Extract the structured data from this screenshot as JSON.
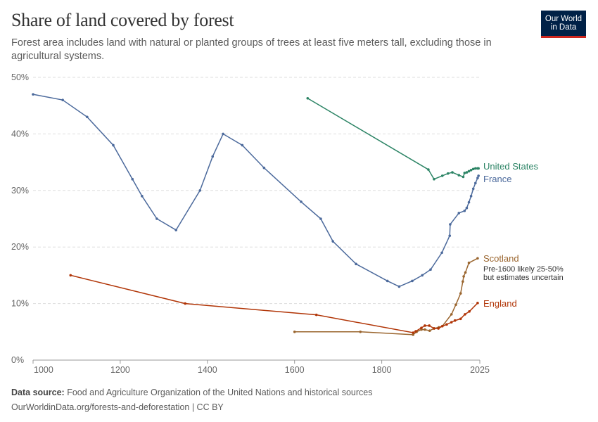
{
  "header": {
    "title": "Share of land covered by forest",
    "subtitle": "Forest area includes land with natural or planted groups of trees at least five meters tall, excluding those in agricultural systems.",
    "logo_text": "Our World in Data"
  },
  "footer": {
    "source_label": "Data source:",
    "source": "Food and Agriculture Organization of the United Nations and historical sources",
    "url": "OurWorldinData.org/forests-and-deforestation | CC BY"
  },
  "chart_data": {
    "type": "line",
    "title": "Share of land covered by forest",
    "xlabel": "",
    "ylabel": "",
    "xlim": [
      1000,
      2025
    ],
    "ylim": [
      0,
      50
    ],
    "x_ticks": [
      "1000",
      "1200",
      "1400",
      "1600",
      "1800",
      "2025"
    ],
    "y_ticks": [
      "0%",
      "10%",
      "20%",
      "30%",
      "40%",
      "50%"
    ],
    "grid": "horizontal dashed",
    "legend": "line-end labels",
    "annotations": [
      {
        "series": "Scotland",
        "text": "Pre-1600 likely 25-50% but estimates uncertain"
      }
    ],
    "series": [
      {
        "name": "United States",
        "color": "#2c8465",
        "points": [
          [
            1630,
            46.3
          ],
          [
            1907,
            33.7
          ],
          [
            1920,
            32
          ],
          [
            1939,
            32.6
          ],
          [
            1952,
            33
          ],
          [
            1962,
            33.2
          ],
          [
            1977,
            32.7
          ],
          [
            1987,
            32.4
          ],
          [
            1990,
            33.1
          ],
          [
            1995,
            33.2
          ],
          [
            2000,
            33.4
          ],
          [
            2005,
            33.6
          ],
          [
            2010,
            33.8
          ],
          [
            2015,
            33.9
          ],
          [
            2020,
            33.9
          ],
          [
            2022,
            33.9
          ]
        ]
      },
      {
        "name": "France",
        "color": "#4c6a9c",
        "points": [
          [
            1000,
            47
          ],
          [
            1068,
            46
          ],
          [
            1124,
            43
          ],
          [
            1184,
            38
          ],
          [
            1228,
            32
          ],
          [
            1250,
            29
          ],
          [
            1284,
            25
          ],
          [
            1328,
            23
          ],
          [
            1383,
            30
          ],
          [
            1412,
            36
          ],
          [
            1436,
            40
          ],
          [
            1480,
            38
          ],
          [
            1530,
            34
          ],
          [
            1615,
            28
          ],
          [
            1660,
            25
          ],
          [
            1688,
            21
          ],
          [
            1741,
            17
          ],
          [
            1813,
            14
          ],
          [
            1840,
            13
          ],
          [
            1870,
            14
          ],
          [
            1893,
            15
          ],
          [
            1912,
            16
          ],
          [
            1938,
            19
          ],
          [
            1956,
            22
          ],
          [
            1957,
            24
          ],
          [
            1977,
            26
          ],
          [
            1990,
            26.4
          ],
          [
            1995,
            26.9
          ],
          [
            2000,
            27.9
          ],
          [
            2005,
            29
          ],
          [
            2010,
            30.3
          ],
          [
            2015,
            31.3
          ],
          [
            2020,
            32.2
          ],
          [
            2022,
            32.6
          ]
        ]
      },
      {
        "name": "Scotland",
        "color": "#9a652e",
        "points": [
          [
            1600,
            5
          ],
          [
            1751,
            5
          ],
          [
            1872,
            4.5
          ],
          [
            1880,
            5
          ],
          [
            1891,
            5.4
          ],
          [
            1899,
            5.4
          ],
          [
            1910,
            5.2
          ],
          [
            1920,
            5.6
          ],
          [
            1931,
            5.8
          ],
          [
            1939,
            6
          ],
          [
            1960,
            8.1
          ],
          [
            1970,
            9.8
          ],
          [
            1981,
            11.8
          ],
          [
            1986,
            13.9
          ],
          [
            1988,
            14.8
          ],
          [
            1992,
            15.5
          ],
          [
            2000,
            17.2
          ],
          [
            2020,
            18
          ]
        ]
      },
      {
        "name": "England",
        "color": "#b13507",
        "points": [
          [
            1086,
            15
          ],
          [
            1349,
            10
          ],
          [
            1650,
            8
          ],
          [
            1872,
            4.85
          ],
          [
            1878,
            5.1
          ],
          [
            1891,
            5.7
          ],
          [
            1899,
            6.1
          ],
          [
            1909,
            6.1
          ],
          [
            1920,
            5.6
          ],
          [
            1930,
            5.6
          ],
          [
            1939,
            6
          ],
          [
            1949,
            6.3
          ],
          [
            1960,
            6.7
          ],
          [
            1968,
            7
          ],
          [
            1981,
            7.3
          ],
          [
            1991,
            8.1
          ],
          [
            2001,
            8.6
          ],
          [
            2020,
            10.1
          ]
        ]
      }
    ]
  }
}
